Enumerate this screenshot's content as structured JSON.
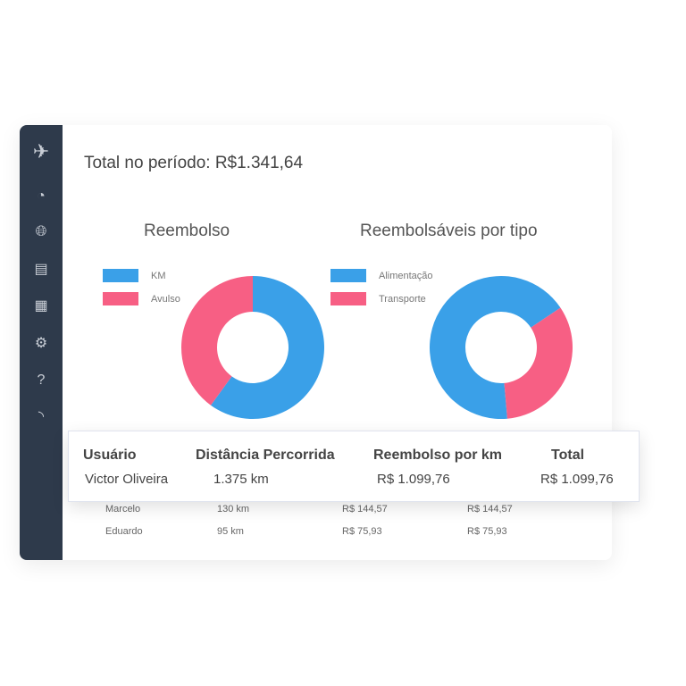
{
  "sidebar": {
    "icons": [
      "logo-icon",
      "dashboard-icon",
      "globe-icon",
      "document-icon",
      "calendar-icon",
      "settings-icon",
      "help-icon",
      "rss-icon"
    ]
  },
  "header": {
    "title": "Total no período: R$1.341,64"
  },
  "charts": [
    {
      "title": "Reembolso",
      "legend": [
        "KM",
        "Avulso"
      ],
      "colors": [
        "#3aa0e8",
        "#f75f84"
      ],
      "values": [
        60,
        40
      ],
      "start_deg": 0
    },
    {
      "title": "Reembolsáveis por tipo",
      "legend": [
        "Alimentação",
        "Transporte"
      ],
      "colors": [
        "#3aa0e8",
        "#f75f84"
      ],
      "values": [
        67,
        33
      ],
      "start_deg": 175
    }
  ],
  "table": {
    "headers": [
      "Usuário",
      "Distância Percorrida",
      "Reembolso por km",
      "Total"
    ],
    "highlight": [
      "Victor Oliveira",
      "1.375 km",
      "R$ 1.099,76",
      "R$ 1.099,76"
    ],
    "rows": [
      [
        "Marcelo",
        "130 km",
        "R$ 144,57",
        "R$ 144,57"
      ],
      [
        "Eduardo",
        "95 km",
        "R$ 75,93",
        "R$ 75,93"
      ]
    ]
  }
}
